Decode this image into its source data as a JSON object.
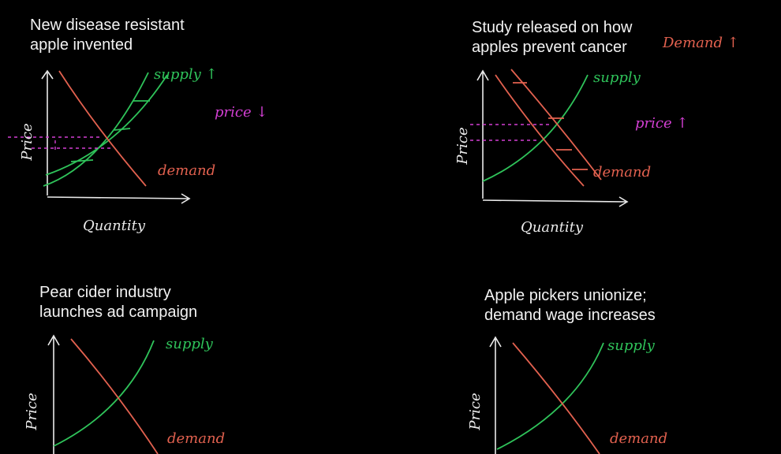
{
  "panels": [
    {
      "title_lines": [
        "New disease resistant",
        "apple invented"
      ],
      "supply": "supply ↑",
      "note": "price ↓",
      "demand": "demand",
      "y_axis": "Price",
      "x_axis": "Quantity"
    },
    {
      "title_lines": [
        "Study released on how",
        "apples prevent cancer"
      ],
      "shift": "Demand ↑",
      "supply": "supply",
      "note": "price ↑",
      "demand": "demand",
      "y_axis": "Price",
      "x_axis": "Quantity"
    },
    {
      "title_lines": [
        "Pear cider industry",
        "launches ad campaign"
      ],
      "supply": "supply",
      "demand": "demand",
      "y_axis": "Price"
    },
    {
      "title_lines": [
        "Apple pickers unionize;",
        "demand wage increases"
      ],
      "supply": "supply",
      "demand": "demand",
      "y_axis": "Price"
    }
  ]
}
